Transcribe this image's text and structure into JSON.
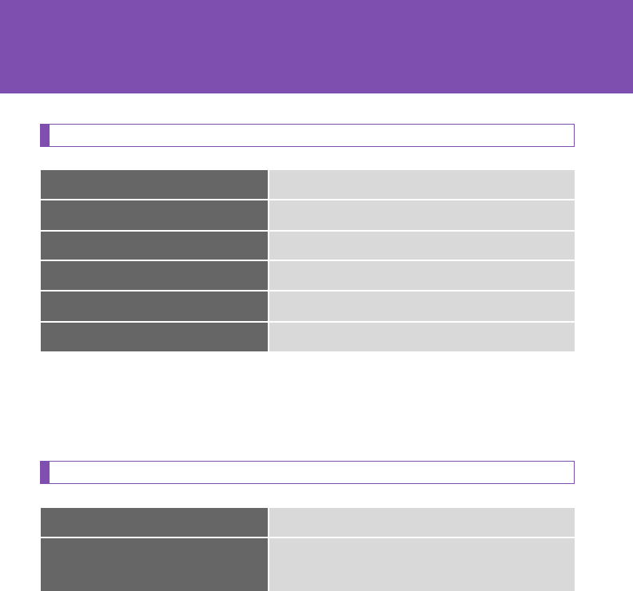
{
  "colors": {
    "accent": "#7f4fb0",
    "label_cell": "#666666",
    "value_cell": "#d9d9d9"
  },
  "sections": [
    {
      "title": "",
      "rows": [
        {
          "label": "",
          "value": ""
        },
        {
          "label": "",
          "value": ""
        },
        {
          "label": "",
          "value": ""
        },
        {
          "label": "",
          "value": ""
        },
        {
          "label": "",
          "value": ""
        },
        {
          "label": "",
          "value": ""
        }
      ]
    },
    {
      "title": "",
      "rows": [
        {
          "label": "",
          "value": ""
        },
        {
          "label": "",
          "value": ""
        }
      ]
    }
  ]
}
